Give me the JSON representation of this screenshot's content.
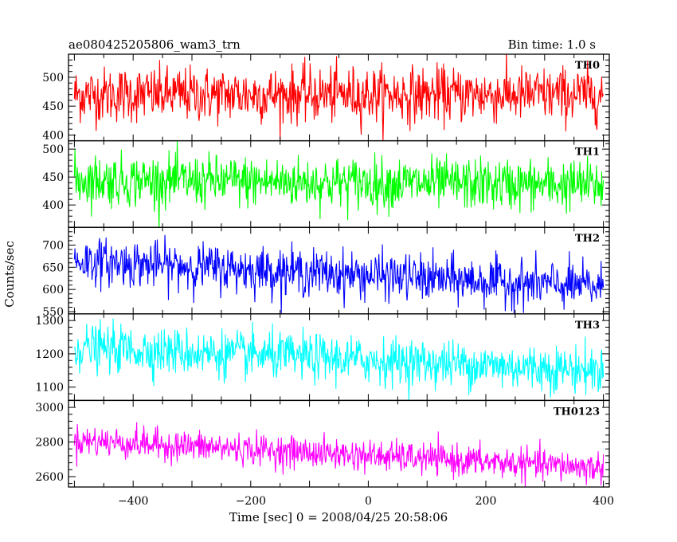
{
  "chart_data": {
    "type": "line",
    "title": "ae080425205806_wam3_trn",
    "subtitle": "Bin time: 1.0 s",
    "xlabel": "Time [sec] 0 = 2008/04/25 20:58:06",
    "ylabel": "Counts/sec",
    "xlim": [
      -510,
      410
    ],
    "x_ticks": [
      -400,
      -200,
      0,
      200,
      400
    ],
    "x_data_range": [
      -500,
      400
    ],
    "bin_time": 1.0,
    "panels": [
      {
        "name": "TH0",
        "color": "#ff0000",
        "ylim": [
          390,
          540
        ],
        "y_ticks": [
          400,
          450,
          500
        ],
        "start_level": 470,
        "end_level": 470,
        "noise_sd": 24
      },
      {
        "name": "TH1",
        "color": "#00ff00",
        "ylim": [
          360,
          515
        ],
        "y_ticks": [
          400,
          450,
          500
        ],
        "start_level": 445,
        "end_level": 435,
        "noise_sd": 23
      },
      {
        "name": "TH2",
        "color": "#0000ff",
        "ylim": [
          545,
          740
        ],
        "y_ticks": [
          550,
          600,
          650,
          700
        ],
        "start_level": 665,
        "end_level": 605,
        "noise_sd": 26
      },
      {
        "name": "TH3",
        "color": "#00ffff",
        "ylim": [
          1060,
          1320
        ],
        "y_ticks": [
          1100,
          1200,
          1300
        ],
        "start_level": 1220,
        "end_level": 1150,
        "noise_sd": 35
      },
      {
        "name": "TH0123",
        "color": "#ff00ff",
        "ylim": [
          2540,
          3040
        ],
        "y_ticks": [
          2600,
          2800,
          3000
        ],
        "start_level": 2810,
        "end_level": 2650,
        "noise_sd": 45
      }
    ]
  }
}
